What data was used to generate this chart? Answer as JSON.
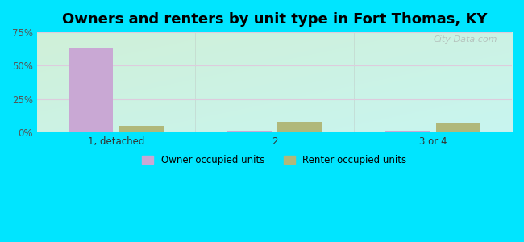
{
  "title": "Owners and renters by unit type in Fort Thomas, KY",
  "categories": [
    "1, detached",
    "2",
    "3 or 4"
  ],
  "owner_values": [
    63,
    1,
    1
  ],
  "renter_values": [
    5,
    8,
    7
  ],
  "owner_color": "#c9a8d4",
  "renter_color": "#b0b87a",
  "bar_width": 0.28,
  "ylim": [
    0,
    75
  ],
  "yticks": [
    0,
    25,
    50,
    75
  ],
  "ytick_labels": [
    "0%",
    "25%",
    "50%",
    "75%"
  ],
  "outer_bg": "#00e5ff",
  "title_fontsize": 13,
  "legend_owner": "Owner occupied units",
  "legend_renter": "Renter occupied units",
  "watermark": "City-Data.com",
  "grid_color": "#ddccdd",
  "bg_top_left": "#d0f0d8",
  "bg_bottom_right": "#c0f5f0"
}
